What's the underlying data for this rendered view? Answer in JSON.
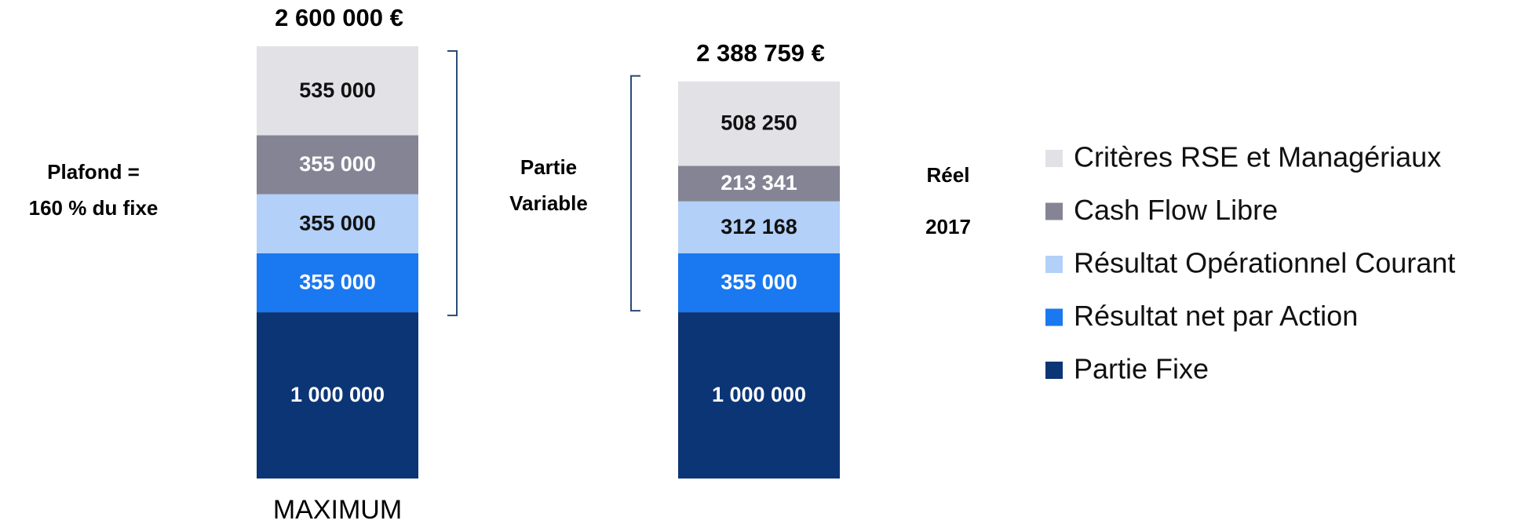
{
  "chart_data": {
    "type": "stacked_bar",
    "categories": [
      "MAXIMUM",
      null
    ],
    "series": [
      {
        "name": "Critères RSE et Managériaux",
        "color": "#e2e2e6",
        "values": [
          535000,
          508250
        ],
        "value_labels": [
          "535 000",
          "508 250"
        ]
      },
      {
        "name": "Cash Flow Libre",
        "color": "#858494",
        "values": [
          355000,
          213341
        ],
        "value_labels": [
          "355 000",
          "213 341"
        ]
      },
      {
        "name": "Résultat Opérationnel Courant",
        "color": "#b2d0f8",
        "values": [
          355000,
          312168
        ],
        "value_labels": [
          "355 000",
          "312 168"
        ]
      },
      {
        "name": "Résultat net par Action",
        "color": "#1a78f0",
        "values": [
          355000,
          355000
        ],
        "value_labels": [
          "355 000",
          "355 000"
        ]
      },
      {
        "name": "Partie Fixe",
        "color": "#0c3575",
        "values": [
          1000000,
          1000000
        ],
        "value_labels": [
          "1 000 000",
          "1 000 000"
        ]
      }
    ],
    "totals": [
      2600000,
      2388759
    ],
    "total_labels": [
      "2 600 000 €",
      "2 388 759 €"
    ],
    "annotations": [
      [
        "Plafond =",
        "160 % du fixe"
      ],
      [
        "Partie",
        "Variable"
      ],
      [
        "Réel",
        "2017"
      ]
    ]
  }
}
